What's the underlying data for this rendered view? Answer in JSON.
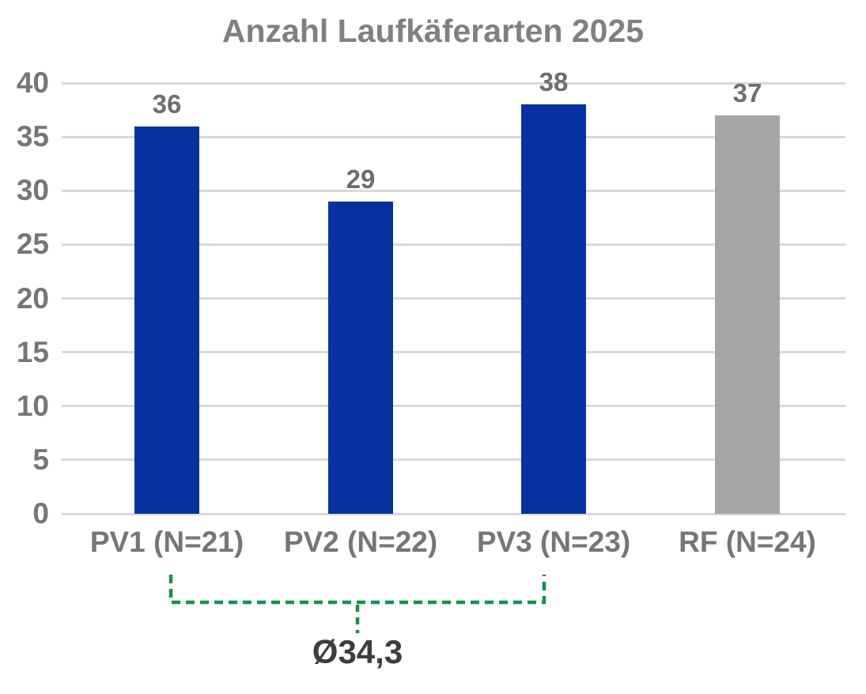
{
  "chart_data": {
    "type": "bar",
    "title": "Anzahl Laufkäferarten 2025",
    "categories": [
      "PV1 (N=21)",
      "PV2 (N=22)",
      "PV3 (N=23)",
      "RF (N=24)"
    ],
    "values": [
      36,
      29,
      38,
      37
    ],
    "bar_colors": [
      "#0633A0",
      "#0633A0",
      "#0633A0",
      "#A6A6A6"
    ],
    "xlabel": "",
    "ylabel": "",
    "ylim": [
      0,
      40
    ],
    "yticks": [
      0,
      5,
      10,
      15,
      20,
      25,
      30,
      35,
      40
    ],
    "grid": true,
    "legend": "none",
    "annotation": {
      "label": "Ø34,3",
      "spans_bars": [
        "PV1 (N=21)",
        "PV2 (N=22)",
        "PV3 (N=23)"
      ],
      "style": "dashed-bracket",
      "color": "#169149"
    },
    "colors": {
      "bar_blue": "#0633A0",
      "bar_gray": "#A6A6A6",
      "gridline": "#D9D9D9",
      "title_text": "#808080",
      "axis_text": "#767676",
      "value_text": "#6E6E6E",
      "annotation_text": "#3D3D3D",
      "bracket_green": "#169149"
    }
  }
}
